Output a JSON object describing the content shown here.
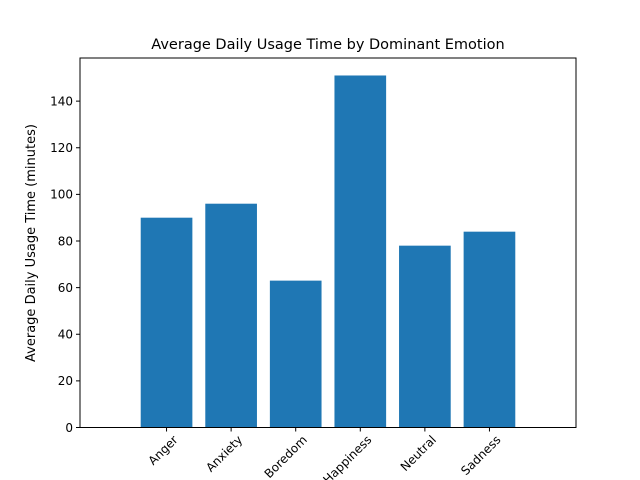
{
  "chart_data": {
    "type": "bar",
    "title": "Average Daily Usage Time by Dominant Emotion",
    "xlabel": "",
    "ylabel": "Average Daily Usage Time (minutes)",
    "categories": [
      "Anger",
      "Anxiety",
      "Boredom",
      "Happiness",
      "Neutral",
      "Sadness"
    ],
    "values": [
      90,
      96,
      63,
      151,
      78,
      84
    ],
    "ylim": [
      0,
      158.5
    ],
    "yticks": [
      0,
      20,
      40,
      60,
      80,
      100,
      120,
      140
    ],
    "bar_color": "#1f77b4",
    "grid": false,
    "xtick_rotation": 45
  }
}
